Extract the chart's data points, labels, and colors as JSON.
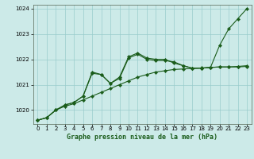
{
  "title": "Graphe pression niveau de la mer (hPa)",
  "ylim": [
    1019.45,
    1024.15
  ],
  "yticks": [
    1020,
    1021,
    1022,
    1023,
    1024
  ],
  "xticks": [
    0,
    1,
    2,
    3,
    4,
    5,
    6,
    7,
    8,
    9,
    10,
    11,
    12,
    13,
    14,
    15,
    16,
    17,
    18,
    19,
    20,
    21,
    22,
    23
  ],
  "background_color": "#cceae8",
  "grid_color": "#99cccc",
  "line_color": "#1a5c1a",
  "series": [
    [
      1019.6,
      1019.7,
      1020.0,
      1020.15,
      1020.25,
      1020.4,
      1020.55,
      1020.7,
      1020.85,
      1021.0,
      1021.15,
      1021.3,
      1021.4,
      1021.5,
      1021.55,
      1021.6,
      1021.62,
      1021.64,
      1021.66,
      1021.68,
      1021.7,
      1021.7,
      1021.72,
      1021.75
    ],
    [
      1019.6,
      1019.7,
      1020.0,
      1020.2,
      1020.3,
      1020.55,
      1021.45,
      1021.4,
      1021.05,
      1021.25,
      1022.05,
      1022.2,
      1022.0,
      1021.95,
      1021.95,
      1021.9,
      1021.75,
      1021.65,
      1021.65,
      1021.68,
      1021.7,
      1021.7,
      1021.7,
      1021.72
    ],
    [
      1019.6,
      1019.7,
      1020.0,
      1020.2,
      1020.3,
      1020.55,
      1021.5,
      1021.4,
      1021.05,
      1021.3,
      1022.1,
      1022.25,
      1022.05,
      1022.0,
      1022.0,
      1021.85,
      1021.75,
      1021.65,
      1021.65,
      1021.68,
      1022.55,
      1023.2,
      1023.6,
      1024.0
    ]
  ]
}
